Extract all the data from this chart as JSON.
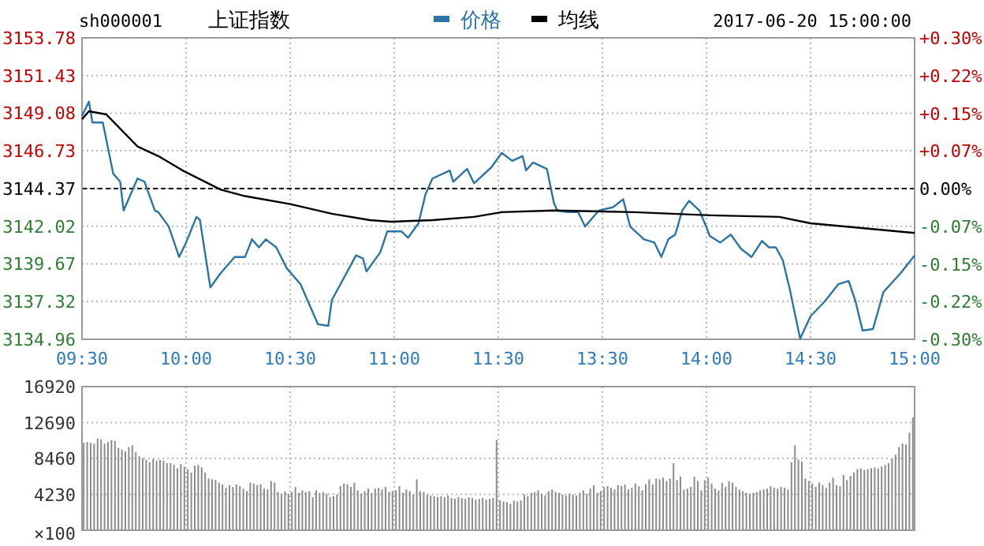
{
  "chart_data": [
    {
      "type": "line",
      "title": "上证指数",
      "subtitle": "sh000001",
      "annotations": [
        "2017-06-20 15:00:00"
      ],
      "legend": "top",
      "grid": true,
      "line_style": "solid",
      "categories": [
        "09:30",
        null,
        null,
        null,
        null,
        null,
        null,
        null,
        null,
        null,
        null,
        null,
        null,
        null,
        null,
        null,
        null,
        null,
        null,
        null,
        null,
        null,
        null,
        null,
        null,
        null,
        null,
        null,
        null,
        null,
        "10:00",
        null,
        null,
        null,
        null,
        null,
        null,
        null,
        null,
        null,
        null,
        null,
        null,
        null,
        null,
        null,
        null,
        null,
        null,
        null,
        null,
        null,
        null,
        null,
        null,
        null,
        null,
        null,
        null,
        null,
        "10:30",
        null,
        null,
        null,
        null,
        null,
        null,
        null,
        null,
        null,
        null,
        null,
        null,
        null,
        null,
        null,
        null,
        null,
        null,
        null,
        null,
        null,
        null,
        null,
        null,
        null,
        null,
        null,
        null,
        null,
        "11:00",
        null,
        null,
        null,
        null,
        null,
        null,
        null,
        null,
        null,
        null,
        null,
        null,
        null,
        null,
        null,
        null,
        null,
        null,
        null,
        null,
        null,
        null,
        null,
        null,
        null,
        null,
        null,
        null,
        null,
        "11:30",
        null,
        null,
        null,
        null,
        null,
        null,
        null,
        null,
        null,
        null,
        null,
        null,
        null,
        null,
        null,
        null,
        null,
        null,
        null,
        null,
        null,
        null,
        null,
        null,
        null,
        null,
        null,
        null,
        null,
        "13:30",
        null,
        null,
        null,
        null,
        null,
        null,
        null,
        null,
        null,
        null,
        null,
        null,
        null,
        null,
        null,
        null,
        null,
        null,
        null,
        null,
        null,
        null,
        null,
        null,
        null,
        null,
        null,
        null,
        null,
        "14:00",
        null,
        null,
        null,
        null,
        null,
        null,
        null,
        null,
        null,
        null,
        null,
        null,
        null,
        null,
        null,
        null,
        null,
        null,
        null,
        null,
        null,
        null,
        null,
        null,
        null,
        null,
        null,
        null,
        null,
        "14:30",
        null,
        null,
        null,
        null,
        null,
        null,
        null,
        null,
        null,
        null,
        null,
        null,
        null,
        null,
        null,
        null,
        null,
        null,
        null,
        null,
        null,
        null,
        null,
        null,
        null,
        null,
        null,
        null,
        null,
        "15:00"
      ],
      "ylim": [
        3134.96,
        3153.78
      ],
      "yticks": [
        3134.96,
        3137.32,
        3139.67,
        3142.02,
        3144.37,
        3146.73,
        3149.08,
        3151.43,
        3153.78
      ],
      "y2lim": [
        -0.3,
        0.3
      ],
      "y2ticks": [
        {
          "value": -0.3,
          "label": "-0.30%"
        },
        {
          "value": -0.225,
          "label": "-0.22%"
        },
        {
          "value": -0.15,
          "label": "-0.15%"
        },
        {
          "value": -0.075,
          "label": "-0.07%"
        },
        {
          "value": 0,
          "label": "0.00%"
        },
        {
          "value": 0.075,
          "label": "+0.07%"
        },
        {
          "value": 0.15,
          "label": "+0.15%"
        },
        {
          "value": 0.225,
          "label": "+0.22%"
        },
        {
          "value": 0.3,
          "label": "+0.30%"
        }
      ],
      "ref_lines": [
        {
          "axis": "y",
          "value": 3144.37,
          "color": "#000000",
          "line_style": "dashed"
        }
      ],
      "series": [
        {
          "name": "价格",
          "color": "#2b74a8",
          "values": [
            3148.9,
            null,
            3149.8,
            3148.5,
            null,
            null,
            3148.5,
            null,
            null,
            3145.3,
            null,
            3144.8,
            3143.0,
            null,
            3144.0,
            null,
            3145.0,
            null,
            3144.8,
            null,
            null,
            3143.0,
            3142.9,
            null,
            null,
            3142.0,
            null,
            null,
            3140.1,
            null,
            3141.0,
            null,
            null,
            3142.6,
            3142.4,
            null,
            null,
            3138.2,
            null,
            null,
            3139.1,
            null,
            null,
            null,
            3140.1,
            null,
            null,
            3140.1,
            null,
            3141.2,
            null,
            3140.7,
            null,
            3141.2,
            null,
            null,
            3140.7,
            null,
            null,
            3139.4,
            null,
            null,
            null,
            3138.4,
            null,
            null,
            null,
            null,
            3135.9,
            null,
            null,
            3135.8,
            3137.4,
            null,
            null,
            null,
            null,
            3139.4,
            null,
            3140.2,
            null,
            3140.0,
            3139.2,
            null,
            null,
            null,
            3140.4,
            null,
            3141.7,
            null,
            null,
            null,
            3141.7,
            null,
            3141.3,
            null,
            null,
            3142.2,
            null,
            3144.0,
            null,
            3145.0,
            null,
            null,
            null,
            null,
            3145.5,
            3144.8,
            null,
            null,
            null,
            3145.6,
            null,
            3144.7,
            null,
            null,
            null,
            null,
            3145.7,
            null,
            null,
            3146.6,
            null,
            null,
            3146.1,
            null,
            null,
            3146.4,
            3145.5,
            null,
            3146.0,
            null,
            null,
            null,
            3145.6,
            null,
            3143.5,
            3143.0,
            null,
            null,
            3142.9,
            null,
            null,
            3142.9,
            null,
            3142.0,
            null,
            null,
            null,
            3143.0,
            null,
            null,
            null,
            3143.2,
            null,
            null,
            3143.7,
            null,
            3142.0,
            null,
            null,
            null,
            3141.2,
            null,
            null,
            3141.0,
            null,
            3140.1,
            null,
            3141.2,
            null,
            3141.5,
            null,
            3143.0,
            null,
            3143.6,
            null,
            null,
            3143.0,
            null,
            null,
            3141.4,
            null,
            null,
            3141.0,
            null,
            null,
            3141.5,
            null,
            null,
            3140.6,
            null,
            null,
            3140.1,
            null,
            null,
            3141.1,
            null,
            3140.7,
            null,
            3140.7,
            null,
            3139.9,
            null,
            3138.1,
            null,
            null,
            3135.0,
            null,
            null,
            3136.4,
            null,
            null,
            null,
            3137.3,
            null,
            null,
            null,
            3138.4,
            null,
            null,
            3138.6,
            null,
            3137.3,
            null,
            3135.5,
            null,
            null,
            3135.6,
            null,
            null,
            3137.9,
            null,
            null,
            null,
            null,
            3139.1,
            null,
            null,
            null,
            3140.2
          ]
        },
        {
          "name": "均线",
          "color": "#000000",
          "values": [
            3148.7,
            null,
            3149.2,
            null,
            null,
            null,
            null,
            3149.0,
            null,
            null,
            null,
            null,
            null,
            null,
            null,
            null,
            3147.0,
            null,
            null,
            null,
            null,
            null,
            3146.4,
            null,
            null,
            null,
            null,
            null,
            null,
            3145.5,
            null,
            null,
            null,
            null,
            null,
            null,
            null,
            null,
            null,
            null,
            3144.3,
            null,
            null,
            null,
            null,
            null,
            null,
            3143.9,
            null,
            null,
            null,
            null,
            null,
            null,
            null,
            null,
            null,
            null,
            null,
            null,
            3143.4,
            null,
            null,
            null,
            null,
            null,
            null,
            null,
            null,
            null,
            null,
            null,
            3142.8,
            null,
            null,
            null,
            null,
            null,
            null,
            null,
            null,
            null,
            null,
            3142.4,
            null,
            null,
            null,
            null,
            null,
            3142.3,
            null,
            null,
            null,
            null,
            null,
            null,
            null,
            null,
            null,
            null,
            null,
            3142.4,
            null,
            null,
            null,
            null,
            null,
            null,
            null,
            null,
            null,
            null,
            null,
            3142.6,
            null,
            null,
            null,
            null,
            null,
            null,
            null,
            3142.9,
            null,
            null,
            null,
            null,
            null,
            null,
            null,
            null,
            null,
            null,
            null,
            null,
            null,
            null,
            3143.0,
            null,
            null,
            null,
            null,
            null,
            null,
            null,
            null,
            null,
            null,
            null,
            null,
            null,
            null,
            null,
            null,
            null,
            null,
            null,
            null,
            null,
            null,
            3142.9,
            null,
            null,
            null,
            null,
            null,
            null,
            null,
            null,
            null,
            null,
            null,
            null,
            null,
            null,
            null,
            null,
            null,
            null,
            null,
            null,
            null,
            3142.7,
            null,
            null,
            null,
            null,
            null,
            null,
            null,
            null,
            null,
            null,
            null,
            null,
            null,
            null,
            null,
            null,
            null,
            null,
            null,
            3142.6,
            null,
            null,
            null,
            null,
            null,
            null,
            null,
            null,
            3142.2,
            null,
            null,
            null,
            null,
            null,
            null,
            null,
            null,
            null,
            null,
            null,
            null,
            null,
            null,
            null,
            null,
            null,
            null,
            null,
            null,
            null,
            null,
            null,
            null,
            null,
            null,
            null,
            null,
            null,
            3141.6
          ]
        }
      ]
    },
    {
      "type": "bar",
      "color": "#8c8c8c",
      "grid": true,
      "tick_labels": "y",
      "ylim": [
        0,
        16920
      ],
      "yticks": [
        4230,
        8460,
        12690,
        16920
      ],
      "ylabel": "×100",
      "categories": [
        null,
        null,
        null,
        null,
        null,
        null,
        null,
        null,
        null,
        null,
        null,
        null,
        null,
        null,
        null,
        null,
        null,
        null,
        null,
        null,
        null,
        null,
        null,
        null,
        null,
        null,
        null,
        null,
        null,
        null,
        null,
        null,
        null,
        null,
        null,
        null,
        null,
        null,
        null,
        null,
        null,
        null,
        null,
        null,
        null,
        null,
        null,
        null,
        null,
        null,
        null,
        null,
        null,
        null,
        null,
        null,
        null,
        null,
        null,
        null,
        null,
        null,
        null,
        null,
        null,
        null,
        null,
        null,
        null,
        null,
        null,
        null,
        null,
        null,
        null,
        null,
        null,
        null,
        null,
        null,
        null,
        null,
        null,
        null,
        null,
        null,
        null,
        null,
        null,
        null,
        null,
        null,
        null,
        null,
        null,
        null,
        null,
        null,
        null,
        null,
        null,
        null,
        null,
        null,
        null,
        null,
        null,
        null,
        null,
        null,
        null,
        null,
        null,
        null,
        null,
        null,
        null,
        null,
        null,
        null,
        null,
        null,
        null,
        null,
        null,
        null,
        null,
        null,
        null,
        null,
        null,
        null,
        null,
        null,
        null,
        null,
        null,
        null,
        null,
        null,
        null,
        null,
        null,
        null,
        null,
        null,
        null,
        null,
        null,
        null,
        null,
        null,
        null,
        null,
        null,
        null,
        null,
        null,
        null,
        null,
        null,
        null,
        null,
        null,
        null,
        null,
        null,
        null,
        null,
        null,
        null,
        null,
        null,
        null,
        null,
        null,
        null,
        null,
        null,
        null,
        null,
        null,
        null,
        null,
        null,
        null,
        null,
        null,
        null,
        null,
        null,
        null,
        null,
        null,
        null,
        null,
        null,
        null,
        null,
        null,
        null,
        null,
        null,
        null,
        null,
        null,
        null,
        null,
        null,
        null,
        null,
        null,
        null,
        null,
        null,
        null,
        null,
        null,
        null,
        null,
        null,
        null,
        null,
        null,
        null,
        null,
        null,
        null,
        null,
        null,
        null,
        null,
        null,
        null,
        null,
        null,
        null,
        null,
        null,
        null
      ],
      "values": [
        10300,
        10400,
        10300,
        10200,
        10800,
        10700,
        10200,
        10400,
        10600,
        10500,
        9700,
        9500,
        9300,
        9800,
        10000,
        9200,
        8700,
        8500,
        8300,
        8000,
        8400,
        8200,
        8300,
        8200,
        7900,
        7900,
        7700,
        7300,
        7800,
        7500,
        7200,
        6800,
        7600,
        7700,
        7400,
        6800,
        6100,
        6000,
        5900,
        5600,
        5400,
        5000,
        5300,
        5100,
        5400,
        5200,
        4900,
        4600,
        5600,
        5500,
        5300,
        5400,
        4900,
        4800,
        5800,
        5600,
        4500,
        4300,
        4600,
        4300,
        4500,
        5100,
        4400,
        4700,
        4500,
        4600,
        3900,
        4700,
        4400,
        4500,
        4300,
        3900,
        4000,
        4200,
        5200,
        5500,
        5400,
        5100,
        5600,
        4700,
        4300,
        4600,
        4900,
        4400,
        4900,
        5000,
        4800,
        5100,
        4500,
        4600,
        4700,
        5200,
        4400,
        4800,
        4600,
        4200,
        6000,
        4600,
        4500,
        4200,
        4100,
        4000,
        3900,
        4000,
        3900,
        4100,
        3800,
        3700,
        3900,
        3800,
        3700,
        3900,
        3800,
        3600,
        3700,
        3800,
        3600,
        3700,
        3800,
        10600,
        3500,
        3400,
        3300,
        3100,
        3500,
        3400,
        3500,
        4200,
        4000,
        4400,
        4500,
        4700,
        4300,
        4100,
        4600,
        4800,
        4500,
        4400,
        4200,
        4100,
        4300,
        4200,
        4100,
        4400,
        4700,
        4300,
        4900,
        5300,
        4400,
        4600,
        5100,
        5200,
        5000,
        4800,
        5300,
        5200,
        5400,
        4800,
        5000,
        5500,
        5200,
        4700,
        5400,
        6000,
        5400,
        6100,
        6000,
        6200,
        5800,
        6100,
        7900,
        5900,
        6300,
        4800,
        4900,
        5100,
        6300,
        5800,
        4700,
        5900,
        6200,
        5500,
        4900,
        4700,
        5600,
        5100,
        5800,
        5600,
        5100,
        4800,
        4600,
        4400,
        4300,
        4400,
        4500,
        4700,
        4800,
        4900,
        5200,
        5000,
        4900,
        5100,
        5000,
        4800,
        8000,
        10000,
        8300,
        8100,
        6100,
        5800,
        5500,
        5100,
        5600,
        5300,
        5000,
        5600,
        6200,
        5300,
        5200,
        6500,
        5900,
        6400,
        6800,
        7200,
        7300,
        7100,
        7200,
        7300,
        7400,
        7300,
        7500,
        7700,
        7900,
        8400,
        8900,
        9800,
        10200,
        10100,
        11500,
        13300
      ]
    }
  ]
}
